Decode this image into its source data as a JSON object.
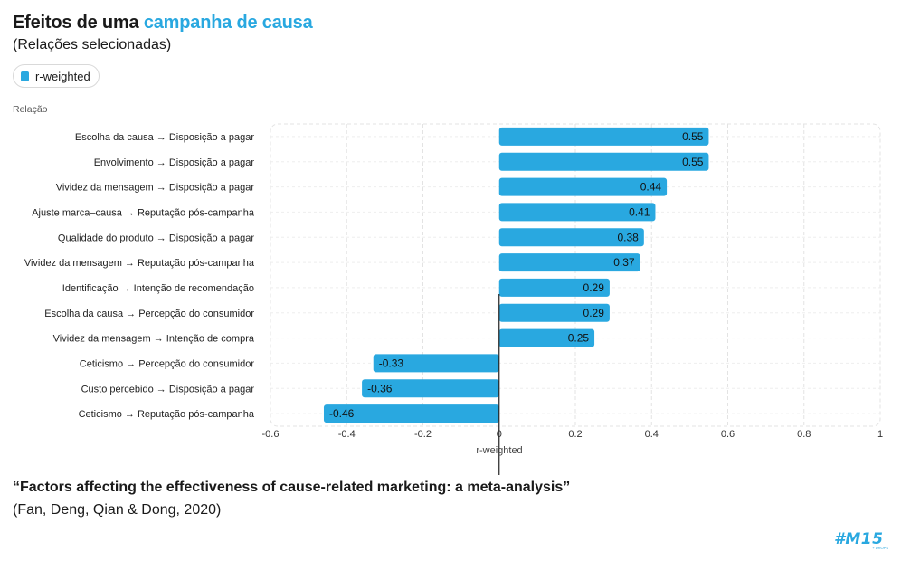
{
  "header": {
    "title_prefix": "Efeitos de uma ",
    "title_highlight": "campanha de causa",
    "subtitle": "(Relações selecionadas)"
  },
  "legend": {
    "label": "r-weighted"
  },
  "colors": {
    "bar": "#29a8e0",
    "highlight": "#29a8e0",
    "grid": "#e3e3e3",
    "zero_line": "#222222"
  },
  "chart_data": {
    "type": "bar",
    "orientation": "horizontal",
    "ylabel": "Relação",
    "xlabel": "r-weighted",
    "xlim": [
      -0.6,
      1
    ],
    "xticks": [
      -0.6,
      -0.4,
      -0.2,
      0,
      0.2,
      0.4,
      0.6,
      0.8,
      1
    ],
    "xtick_labels": [
      "-0.6",
      "-0.4",
      "-0.2",
      "0",
      "0.2",
      "0.4",
      "0.6",
      "0.8",
      "1"
    ],
    "categories": [
      "Escolha da causa → Disposição a pagar",
      "Envolvimento → Disposição a pagar",
      "Vividez da mensagem → Disposição a pagar",
      "Ajuste marca–causa → Reputação pós-campanha",
      "Qualidade do produto → Disposição a pagar",
      "Vividez da mensagem → Reputação pós-campanha",
      "Identificação → Intenção de recomendação",
      "Escolha da causa → Percepção do consumidor",
      "Vividez da mensagem → Intenção de compra",
      "Ceticismo → Percepção do consumidor",
      "Custo percebido → Disposição a pagar",
      "Ceticismo → Reputação pós-campanha"
    ],
    "values": [
      0.55,
      0.55,
      0.44,
      0.41,
      0.38,
      0.37,
      0.29,
      0.29,
      0.25,
      -0.33,
      -0.36,
      -0.46
    ],
    "value_labels": [
      "0.55",
      "0.55",
      "0.44",
      "0.41",
      "0.38",
      "0.37",
      "0.29",
      "0.29",
      "0.25",
      "-0.33",
      "-0.36",
      "-0.46"
    ],
    "grid": true,
    "legend_position": "top-left"
  },
  "citation": {
    "title": "“Factors affecting the effectiveness of cause-related marketing: a meta-analysis”",
    "authors": "(Fan, Deng, Qian & Dong, 2020)"
  },
  "brand": {
    "logo_text": "#M15",
    "logo_subtext": "+ DROPS"
  }
}
